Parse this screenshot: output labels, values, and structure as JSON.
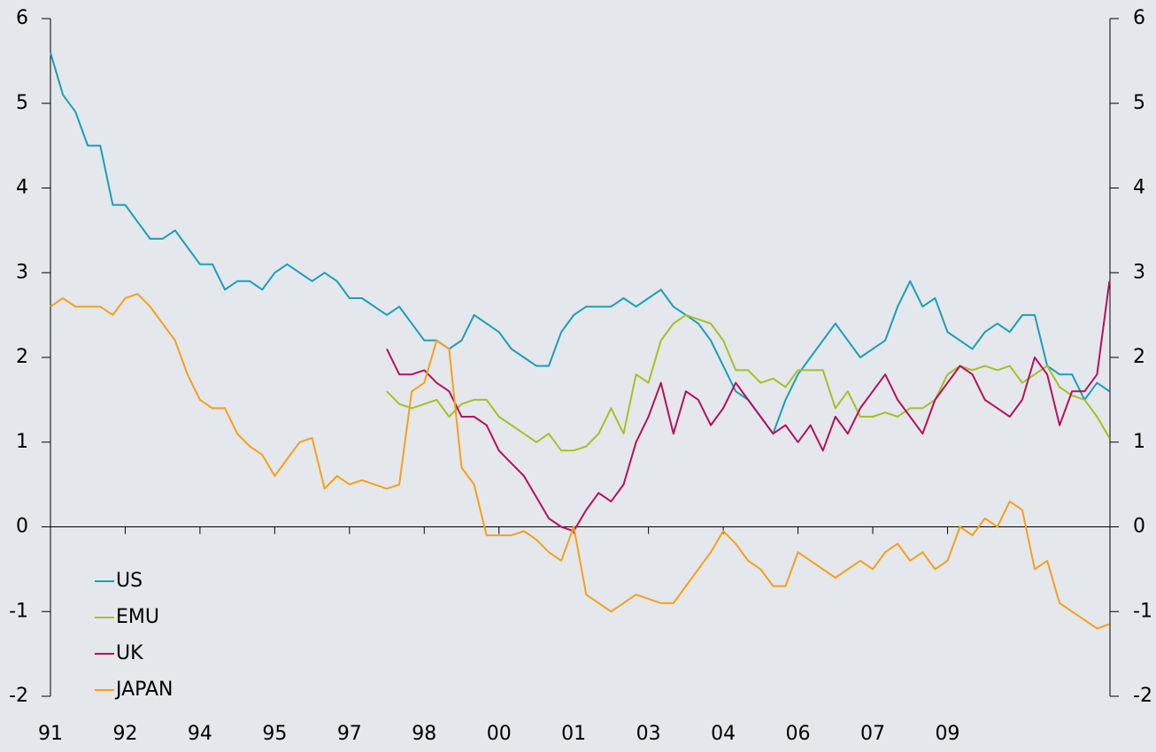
{
  "chart_data": {
    "type": "line",
    "x": [
      1991,
      1991.25,
      1991.5,
      1991.75,
      1992,
      1992.25,
      1992.5,
      1992.75,
      1993,
      1993.25,
      1993.5,
      1993.75,
      1994,
      1994.25,
      1994.5,
      1994.75,
      1995,
      1995.25,
      1995.5,
      1995.75,
      1996,
      1996.25,
      1996.5,
      1996.75,
      1997,
      1997.25,
      1997.5,
      1997.75,
      1998,
      1998.25,
      1998.5,
      1998.75,
      1999,
      1999.25,
      1999.5,
      1999.75,
      2000,
      2000.25,
      2000.5,
      2000.75,
      2001,
      2001.25,
      2001.5,
      2001.75,
      2002,
      2002.25,
      2002.5,
      2002.75,
      2003,
      2003.25,
      2003.5,
      2003.75,
      2004,
      2004.25,
      2004.5,
      2004.75,
      2005,
      2005.25,
      2005.5,
      2005.75,
      2006,
      2006.25,
      2006.5,
      2006.75,
      2007,
      2007.25,
      2007.5,
      2007.75,
      2008,
      2008.25,
      2008.5,
      2008.75,
      2009,
      2009.25,
      2009.5,
      2009.75,
      2010,
      2010.25,
      2010.5,
      2010.75,
      2011,
      2011.25,
      2011.5,
      2011.75,
      2012,
      2012.25
    ],
    "series": [
      {
        "name": "US",
        "color": "#1a9fb8",
        "values": [
          5.6,
          5.1,
          4.9,
          4.5,
          4.5,
          3.8,
          3.8,
          3.6,
          3.4,
          3.4,
          3.5,
          3.3,
          3.1,
          3.1,
          2.8,
          2.9,
          2.9,
          2.8,
          3.0,
          3.1,
          3.0,
          2.9,
          3.0,
          2.9,
          2.7,
          2.7,
          2.6,
          2.5,
          2.6,
          2.4,
          2.2,
          2.2,
          2.1,
          2.2,
          2.5,
          2.4,
          2.3,
          2.1,
          2.0,
          1.9,
          1.9,
          2.3,
          2.5,
          2.6,
          2.6,
          2.6,
          2.7,
          2.6,
          2.7,
          2.8,
          2.6,
          2.5,
          2.4,
          2.2,
          1.9,
          1.6,
          1.5,
          1.3,
          1.1,
          1.5,
          1.8,
          2.0,
          2.2,
          2.4,
          2.2,
          2.0,
          2.1,
          2.2,
          2.6,
          2.9,
          2.6,
          2.7,
          2.3,
          2.2,
          2.1,
          2.3,
          2.4,
          2.3,
          2.5,
          2.5,
          1.9,
          1.8,
          1.8,
          1.5,
          1.7,
          1.6
        ]
      },
      {
        "name": "EMU",
        "color": "#a5c026",
        "values": [
          null,
          null,
          null,
          null,
          null,
          null,
          null,
          null,
          null,
          null,
          null,
          null,
          null,
          null,
          null,
          null,
          null,
          null,
          null,
          null,
          null,
          null,
          null,
          null,
          null,
          null,
          null,
          1.6,
          1.45,
          1.4,
          1.45,
          1.5,
          1.3,
          1.45,
          1.5,
          1.5,
          1.3,
          1.2,
          1.1,
          1.0,
          1.1,
          0.9,
          0.9,
          0.95,
          1.1,
          1.4,
          1.1,
          1.8,
          1.7,
          2.2,
          2.4,
          2.5,
          2.45,
          2.4,
          2.2,
          1.85,
          1.85,
          1.7,
          1.75,
          1.65,
          1.85,
          1.85,
          1.85,
          1.4,
          1.6,
          1.3,
          1.3,
          1.35,
          1.3,
          1.4,
          1.4,
          1.5,
          1.8,
          1.9,
          1.85,
          1.9,
          1.85,
          1.9,
          1.7,
          1.8,
          1.9,
          1.65,
          1.55,
          1.5,
          1.3,
          1.05
        ]
      },
      {
        "name": "UK",
        "color": "#b5105f",
        "values": [
          null,
          null,
          null,
          null,
          null,
          null,
          null,
          null,
          null,
          null,
          null,
          null,
          null,
          null,
          null,
          null,
          null,
          null,
          null,
          null,
          null,
          null,
          null,
          null,
          null,
          null,
          null,
          2.1,
          1.8,
          1.8,
          1.85,
          1.7,
          1.6,
          1.3,
          1.3,
          1.2,
          0.9,
          0.75,
          0.6,
          0.35,
          0.1,
          0.0,
          -0.05,
          0.2,
          0.4,
          0.3,
          0.5,
          1.0,
          1.3,
          1.7,
          1.1,
          1.6,
          1.5,
          1.2,
          1.4,
          1.7,
          1.5,
          1.3,
          1.1,
          1.2,
          1.0,
          1.2,
          0.9,
          1.3,
          1.1,
          1.4,
          1.6,
          1.8,
          1.5,
          1.3,
          1.1,
          1.5,
          1.7,
          1.9,
          1.8,
          1.5,
          1.4,
          1.3,
          1.5,
          2.0,
          1.8,
          1.2,
          1.6,
          1.6,
          1.8,
          2.9
        ]
      },
      {
        "name": "JAPAN",
        "color": "#f5a01a",
        "values": [
          2.6,
          2.7,
          2.6,
          2.6,
          2.6,
          2.5,
          2.7,
          2.75,
          2.6,
          2.4,
          2.2,
          1.8,
          1.5,
          1.4,
          1.4,
          1.1,
          0.95,
          0.85,
          0.6,
          0.8,
          1.0,
          1.05,
          0.45,
          0.6,
          0.5,
          0.55,
          0.5,
          0.45,
          0.5,
          1.6,
          1.7,
          2.2,
          2.1,
          0.7,
          0.5,
          -0.1,
          -0.1,
          -0.1,
          -0.05,
          -0.15,
          -0.3,
          -0.4,
          0.0,
          -0.8,
          -0.9,
          -1.0,
          -0.9,
          -0.8,
          -0.85,
          -0.9,
          -0.9,
          -0.7,
          -0.5,
          -0.3,
          -0.05,
          -0.2,
          -0.4,
          -0.5,
          -0.7,
          -0.7,
          -0.3,
          -0.4,
          -0.5,
          -0.6,
          -0.5,
          -0.4,
          -0.5,
          -0.3,
          -0.2,
          -0.4,
          -0.3,
          -0.5,
          -0.4,
          0.0,
          -0.1,
          0.1,
          0.0,
          0.3,
          0.2,
          -0.5,
          -0.4,
          -0.9,
          -1.0,
          -1.1,
          -1.2,
          -1.15
        ]
      }
    ],
    "xlim": [
      1991,
      2012.26
    ],
    "xticks": [
      {
        "value": 1991,
        "label": "91"
      },
      {
        "value": 1992.5,
        "label": "92"
      },
      {
        "value": 1994,
        "label": "94"
      },
      {
        "value": 1995.5,
        "label": "95"
      },
      {
        "value": 1997,
        "label": "97"
      },
      {
        "value": 1998.5,
        "label": "98"
      },
      {
        "value": 2000,
        "label": "00"
      },
      {
        "value": 2001.5,
        "label": "01"
      },
      {
        "value": 2003,
        "label": "03"
      },
      {
        "value": 2004.5,
        "label": "04"
      },
      {
        "value": 2006,
        "label": "06"
      },
      {
        "value": 2007.5,
        "label": "07"
      },
      {
        "value": 2009,
        "label": "09"
      }
    ],
    "ylim": [
      -2,
      6
    ],
    "yticks": [
      -2,
      -1,
      0,
      1,
      2,
      3,
      4,
      5,
      6
    ],
    "grid": false,
    "legend": "lower left"
  }
}
